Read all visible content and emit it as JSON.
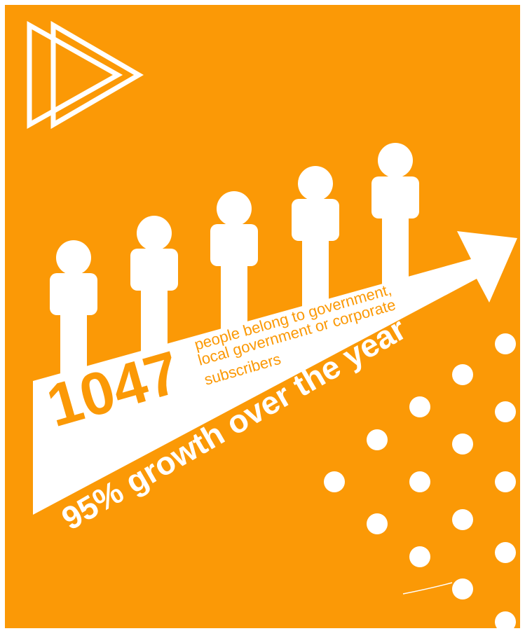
{
  "colors": {
    "background": "#fb9906",
    "foreground": "#ffffff",
    "accent_text": "#fb9906"
  },
  "icons": {
    "logo": "double-play-triangle-icon",
    "person": "person-icon",
    "arrow": "growth-arrow-icon",
    "dots": "dot-pattern-icon"
  },
  "stat": {
    "number": "1047",
    "description_line1": "people belong to government,",
    "description_line2": "local government or corporate",
    "description_line3": "subscribers"
  },
  "growth": {
    "label": "95% growth over the year"
  }
}
